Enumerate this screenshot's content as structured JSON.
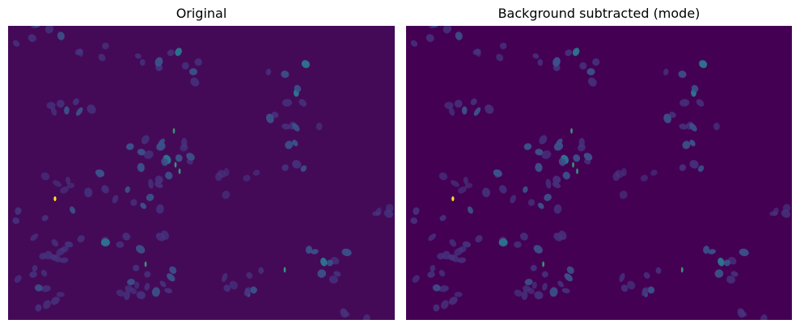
{
  "figure": {
    "panels": [
      {
        "title": "Original",
        "image": "fluorescence-microscopy-nuclei",
        "colormap": "viridis",
        "background_color": "#440a58"
      },
      {
        "title": "Background subtracted (mode)",
        "image": "fluorescence-microscopy-nuclei-background-subtracted",
        "colormap": "viridis",
        "background_color": "#440154"
      }
    ],
    "colors": {
      "dim_nucleus": "#46337e",
      "bright_nucleus": "#3b528b",
      "highlight_nucleus": "#2c728e",
      "hotspot": "#fde725"
    }
  }
}
